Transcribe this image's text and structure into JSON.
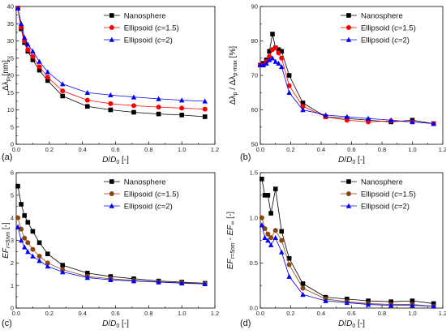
{
  "chart_data": [
    {
      "type": "line",
      "panel_label": "(a)",
      "xlabel": "D/D0 [-]",
      "ylabel": "Δλp [nm]",
      "xlim": [
        0,
        1.2
      ],
      "ylim": [
        0,
        40
      ],
      "xticks": [
        "0.0",
        "0.2",
        "0.4",
        "0.6",
        "0.8",
        "1.0",
        "1.2"
      ],
      "yticks": [
        "0",
        "5",
        "10",
        "15",
        "20",
        "25",
        "30",
        "35",
        "40"
      ],
      "legend_position": "top-right",
      "series": [
        {
          "name": "Nanosphere",
          "color": "#000000",
          "marker": "square",
          "x": [
            0.01,
            0.03,
            0.05,
            0.07,
            0.1,
            0.14,
            0.19,
            0.28,
            0.43,
            0.57,
            0.71,
            0.86,
            1.0,
            1.14
          ],
          "y": [
            39.5,
            33.5,
            29.5,
            27.0,
            24.5,
            21.5,
            18.5,
            14.0,
            11.0,
            10.0,
            9.3,
            8.8,
            8.5,
            8.0
          ]
        },
        {
          "name": "Ellipsoid (c=1.5)",
          "color": "#ff0000",
          "marker": "circle",
          "x": [
            0.01,
            0.03,
            0.05,
            0.07,
            0.1,
            0.14,
            0.19,
            0.28,
            0.43,
            0.57,
            0.71,
            0.86,
            1.0,
            1.14
          ],
          "y": [
            39.5,
            34.0,
            30.0,
            27.5,
            25.5,
            22.5,
            19.5,
            15.5,
            12.8,
            11.8,
            11.2,
            10.8,
            10.5,
            10.2
          ]
        },
        {
          "name": "Ellipsoid (c=2)",
          "color": "#0000ff",
          "marker": "triangle",
          "x": [
            0.01,
            0.03,
            0.05,
            0.07,
            0.1,
            0.14,
            0.19,
            0.28,
            0.43,
            0.57,
            0.71,
            0.86,
            1.0,
            1.14
          ],
          "y": [
            39.5,
            35.0,
            31.0,
            29.0,
            27.0,
            24.0,
            21.0,
            17.5,
            15.0,
            14.3,
            13.7,
            13.2,
            12.8,
            12.5
          ]
        }
      ]
    },
    {
      "type": "line",
      "panel_label": "(b)",
      "xlabel": "D/D0 [-]",
      "ylabel": "Δλp / Δλp-max [%]",
      "xlim": [
        0,
        1.2
      ],
      "ylim": [
        50,
        90
      ],
      "xticks": [
        "0.0",
        "0.2",
        "0.4",
        "0.6",
        "0.8",
        "1.0",
        "1.2"
      ],
      "yticks": [
        "50",
        "60",
        "70",
        "80",
        "90"
      ],
      "legend_position": "top-right",
      "series": [
        {
          "name": "Nanosphere",
          "color": "#000000",
          "marker": "square",
          "x": [
            0.0,
            0.02,
            0.04,
            0.06,
            0.08,
            0.1,
            0.12,
            0.14,
            0.19,
            0.28,
            0.43,
            0.57,
            0.71,
            0.86,
            1.0,
            1.14
          ],
          "y": [
            73.0,
            73.5,
            74.5,
            77.0,
            82.0,
            78.0,
            77.5,
            77.0,
            70.0,
            62.0,
            58.0,
            57.5,
            57.0,
            56.5,
            57.0,
            56.0
          ]
        },
        {
          "name": "Ellipsoid (c=1.5)",
          "color": "#ff0000",
          "marker": "circle",
          "x": [
            0.0,
            0.02,
            0.04,
            0.06,
            0.08,
            0.1,
            0.12,
            0.14,
            0.19,
            0.28,
            0.43,
            0.57,
            0.71,
            0.86,
            1.0,
            1.14
          ],
          "y": [
            73.0,
            73.0,
            74.0,
            75.5,
            77.5,
            78.0,
            76.5,
            75.0,
            67.0,
            61.0,
            58.0,
            57.0,
            56.5,
            56.8,
            56.5,
            56.0
          ]
        },
        {
          "name": "Ellipsoid (c=2)",
          "color": "#0000ff",
          "marker": "triangle",
          "x": [
            0.0,
            0.02,
            0.04,
            0.06,
            0.08,
            0.1,
            0.12,
            0.14,
            0.19,
            0.28,
            0.43,
            0.57,
            0.71,
            0.86,
            1.0,
            1.14
          ],
          "y": [
            73.0,
            73.0,
            73.5,
            74.5,
            75.0,
            74.0,
            73.5,
            72.5,
            65.0,
            60.0,
            58.5,
            58.0,
            57.5,
            57.0,
            56.5,
            56.0
          ]
        }
      ]
    },
    {
      "type": "line",
      "panel_label": "(c)",
      "xlabel": "D/D0 [-]",
      "ylabel": "EFr=5nm [-]",
      "xlim": [
        0,
        1.2
      ],
      "ylim": [
        0,
        6
      ],
      "xticks": [
        "0.0",
        "0.2",
        "0.4",
        "0.6",
        "0.8",
        "1.0",
        "1.2"
      ],
      "yticks": [
        "0",
        "1",
        "2",
        "3",
        "4",
        "5",
        "6"
      ],
      "legend_position": "top-right",
      "series": [
        {
          "name": "Nanosphere",
          "color": "#000000",
          "marker": "square",
          "x": [
            0.01,
            0.03,
            0.05,
            0.07,
            0.1,
            0.14,
            0.19,
            0.28,
            0.43,
            0.57,
            0.71,
            0.86,
            1.0,
            1.14
          ],
          "y": [
            5.4,
            4.6,
            4.1,
            3.8,
            3.4,
            2.9,
            2.4,
            1.9,
            1.55,
            1.4,
            1.3,
            1.2,
            1.15,
            1.1
          ]
        },
        {
          "name": "Ellipsoid (c=1.5)",
          "color": "#8b4513",
          "marker": "circle",
          "x": [
            0.01,
            0.03,
            0.05,
            0.07,
            0.1,
            0.14,
            0.19,
            0.28,
            0.43,
            0.57,
            0.71,
            0.86,
            1.0,
            1.14
          ],
          "y": [
            4.0,
            3.5,
            3.1,
            2.9,
            2.6,
            2.3,
            2.0,
            1.7,
            1.4,
            1.3,
            1.22,
            1.16,
            1.12,
            1.08
          ]
        },
        {
          "name": "Ellipsoid (c=2)",
          "color": "#0000ff",
          "marker": "triangle",
          "x": [
            0.01,
            0.03,
            0.05,
            0.07,
            0.1,
            0.14,
            0.19,
            0.28,
            0.43,
            0.57,
            0.71,
            0.86,
            1.0,
            1.14
          ],
          "y": [
            3.6,
            3.0,
            2.7,
            2.5,
            2.3,
            2.1,
            1.85,
            1.6,
            1.35,
            1.25,
            1.2,
            1.15,
            1.1,
            1.07
          ]
        }
      ]
    },
    {
      "type": "line",
      "panel_label": "(d)",
      "xlabel": "D/D0 [-]",
      "ylabel": "EFr=5nm - EF∞ [-]",
      "xlim": [
        0,
        1.2
      ],
      "ylim": [
        0,
        1.5
      ],
      "xticks": [
        "0.0",
        "0.2",
        "0.4",
        "0.6",
        "0.8",
        "1.0",
        "1.2"
      ],
      "yticks": [
        "0.0",
        "0.5",
        "1.0",
        "1.5"
      ],
      "legend_position": "top-right",
      "series": [
        {
          "name": "Nanosphere",
          "color": "#000000",
          "marker": "square",
          "x": [
            0.01,
            0.03,
            0.05,
            0.07,
            0.1,
            0.14,
            0.19,
            0.28,
            0.43,
            0.57,
            0.71,
            0.86,
            1.0,
            1.14
          ],
          "y": [
            1.43,
            1.25,
            1.25,
            1.05,
            1.32,
            0.85,
            0.55,
            0.27,
            0.12,
            0.1,
            0.08,
            0.07,
            0.08,
            0.05
          ]
        },
        {
          "name": "Ellipsoid (c=1.5)",
          "color": "#8b4513",
          "marker": "circle",
          "x": [
            0.01,
            0.03,
            0.05,
            0.07,
            0.1,
            0.14,
            0.19,
            0.28,
            0.43,
            0.57,
            0.71,
            0.86,
            1.0,
            1.14
          ],
          "y": [
            1.0,
            0.88,
            0.82,
            0.78,
            0.86,
            0.75,
            0.48,
            0.22,
            0.1,
            0.07,
            0.05,
            0.04,
            0.04,
            0.02
          ]
        },
        {
          "name": "Ellipsoid (c=2)",
          "color": "#0000ff",
          "marker": "triangle",
          "x": [
            0.01,
            0.03,
            0.05,
            0.07,
            0.1,
            0.14,
            0.19,
            0.28,
            0.43,
            0.57,
            0.71,
            0.86,
            1.0,
            1.14
          ],
          "y": [
            0.92,
            0.78,
            0.75,
            0.7,
            0.78,
            0.62,
            0.35,
            0.15,
            0.08,
            0.06,
            0.04,
            0.03,
            0.03,
            0.02
          ]
        }
      ]
    }
  ]
}
